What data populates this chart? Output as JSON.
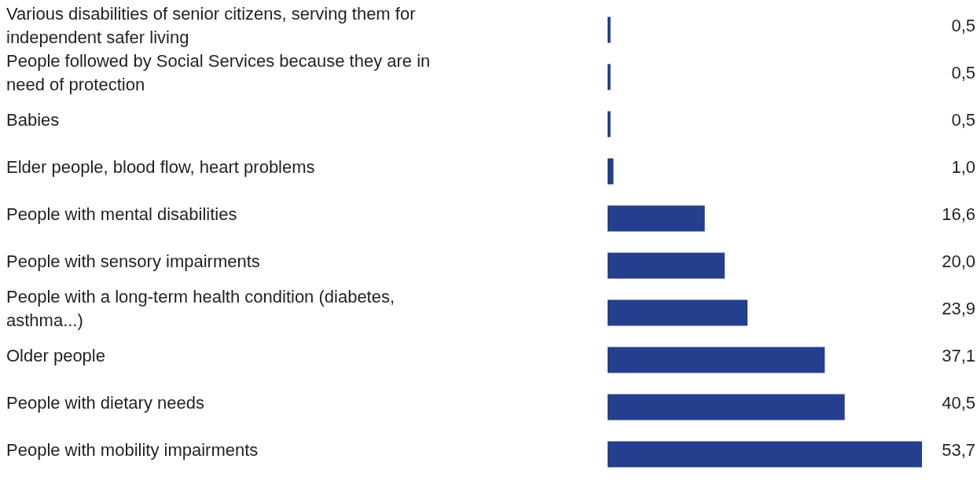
{
  "chart_data": {
    "type": "bar",
    "orientation": "horizontal",
    "categories": [
      "Various disabilities of senior citizens, serving them for independent safer living",
      "People followed by Social Services because they are in need of protection",
      "Babies",
      "Elder people, blood flow, heart problems",
      "People with mental disabilities",
      "People with sensory impairments",
      "People with a long-term health condition (diabetes, asthma...)",
      "Older people",
      "People with dietary needs",
      "People with mobility impairments"
    ],
    "values": [
      0.5,
      0.5,
      0.5,
      1.0,
      16.6,
      20.0,
      23.9,
      37.1,
      40.5,
      53.7
    ],
    "value_labels": [
      "0,5",
      "0,5",
      "0,5",
      "1,0",
      "16,6",
      "20,0",
      "23,9",
      "37,1",
      "40,5",
      "53,7"
    ],
    "color": "#253f8e",
    "legend": false
  }
}
